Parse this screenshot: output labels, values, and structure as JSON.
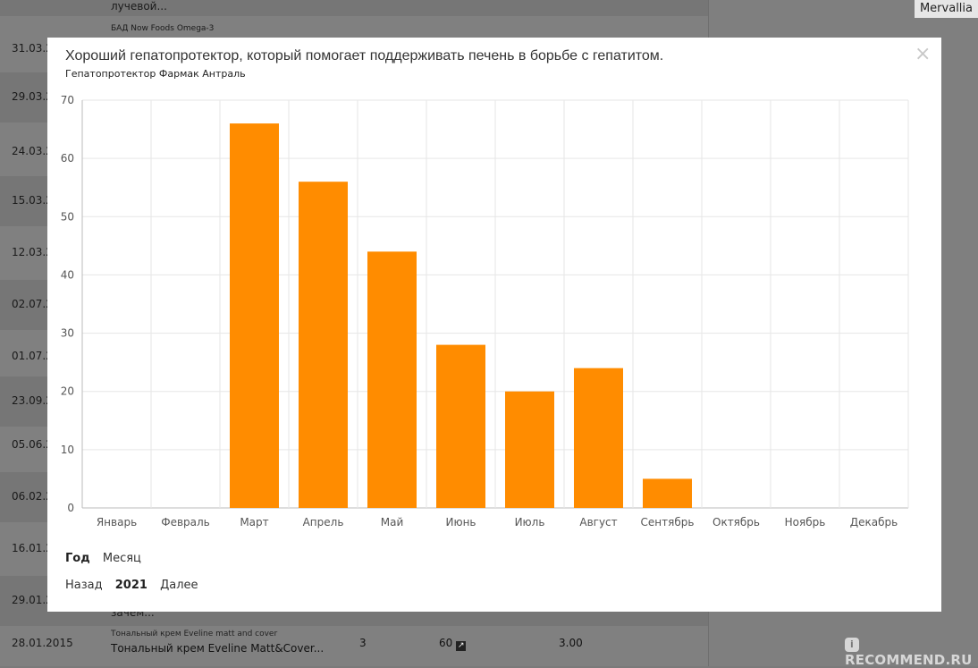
{
  "background": {
    "top_text_1": "лучевой...",
    "top_text_2": "БАД Now Foods Omega-3",
    "dates": [
      "31.03.2",
      "29.03.2",
      "24.03.2",
      "15.03.2",
      "12.03.2",
      "02.07.2",
      "01.07.2",
      "23.09.2",
      "05.06.2",
      "06.02.2",
      "16.01.2",
      "29.01.2"
    ],
    "row_snippet": "зачем...",
    "bottom_row": {
      "date": "28.01.2015",
      "small": "Тональный крем Eveline matt and cover",
      "title": "Тональный крем Eveline Matt&Cover...",
      "col1": "3",
      "col2": "60",
      "col3": "3.00"
    },
    "user_name": "Mervallia",
    "watermark": "RECOMMEND.RU"
  },
  "modal": {
    "title": "Хороший гепатопротектор, который помогает поддерживать печень в борьбе с гепатитом.",
    "subtitle": "Гепатопротектор Фармак Антраль",
    "close_icon": "close-icon",
    "period_year": "Год",
    "period_month": "Месяц",
    "nav_back": "Назад",
    "nav_year": "2021",
    "nav_next": "Далее"
  },
  "chart_data": {
    "type": "bar",
    "categories": [
      "Январь",
      "Февраль",
      "Март",
      "Апрель",
      "Май",
      "Июнь",
      "Июль",
      "Август",
      "Сентябрь",
      "Октябрь",
      "Ноябрь",
      "Декабрь"
    ],
    "values": [
      0,
      0,
      66,
      56,
      44,
      28,
      20,
      24,
      5,
      0,
      0,
      0
    ],
    "ylim": [
      0,
      70
    ],
    "yticks": [
      0,
      10,
      20,
      30,
      40,
      50,
      60,
      70
    ],
    "grid": true,
    "bar_color": "#ff8c00",
    "grid_color": "#e6e6e6"
  }
}
